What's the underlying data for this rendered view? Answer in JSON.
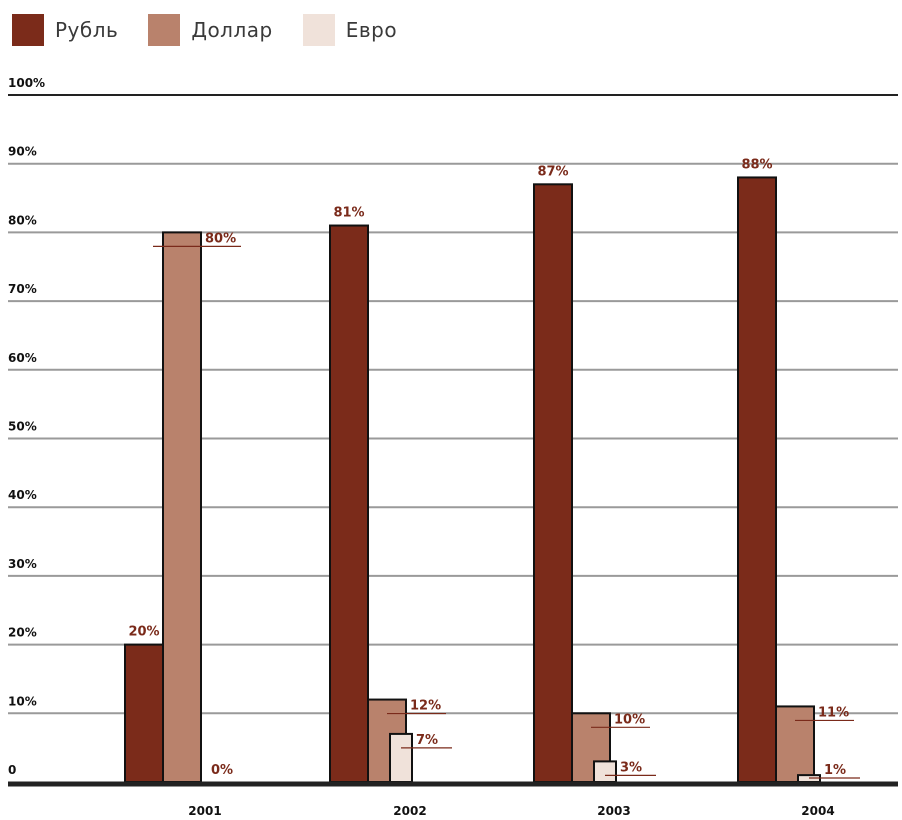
{
  "chart_data": {
    "type": "bar",
    "categories": [
      "2001",
      "2002",
      "2003",
      "2004"
    ],
    "series": [
      {
        "name": "Рубль",
        "color": "#7b2b1a",
        "values": [
          20,
          81,
          87,
          88
        ],
        "labels": [
          "20%",
          "81%",
          "87%",
          "88%"
        ]
      },
      {
        "name": "Доллар",
        "color": "#b9826c",
        "values": [
          80,
          12,
          10,
          11
        ],
        "labels": [
          "80%",
          "12%",
          "10%",
          "11%"
        ]
      },
      {
        "name": "Евро",
        "color": "#f0e2da",
        "values": [
          0,
          7,
          3,
          1
        ],
        "labels": [
          "0%",
          "7%",
          "3%",
          "1%"
        ]
      }
    ],
    "y_ticks": [
      "0",
      "10%",
      "20%",
      "30%",
      "40%",
      "50%",
      "60%",
      "70%",
      "80%",
      "90%",
      "100%"
    ],
    "ylim": [
      0,
      100
    ],
    "grid": true,
    "legend_position": "top-left"
  }
}
